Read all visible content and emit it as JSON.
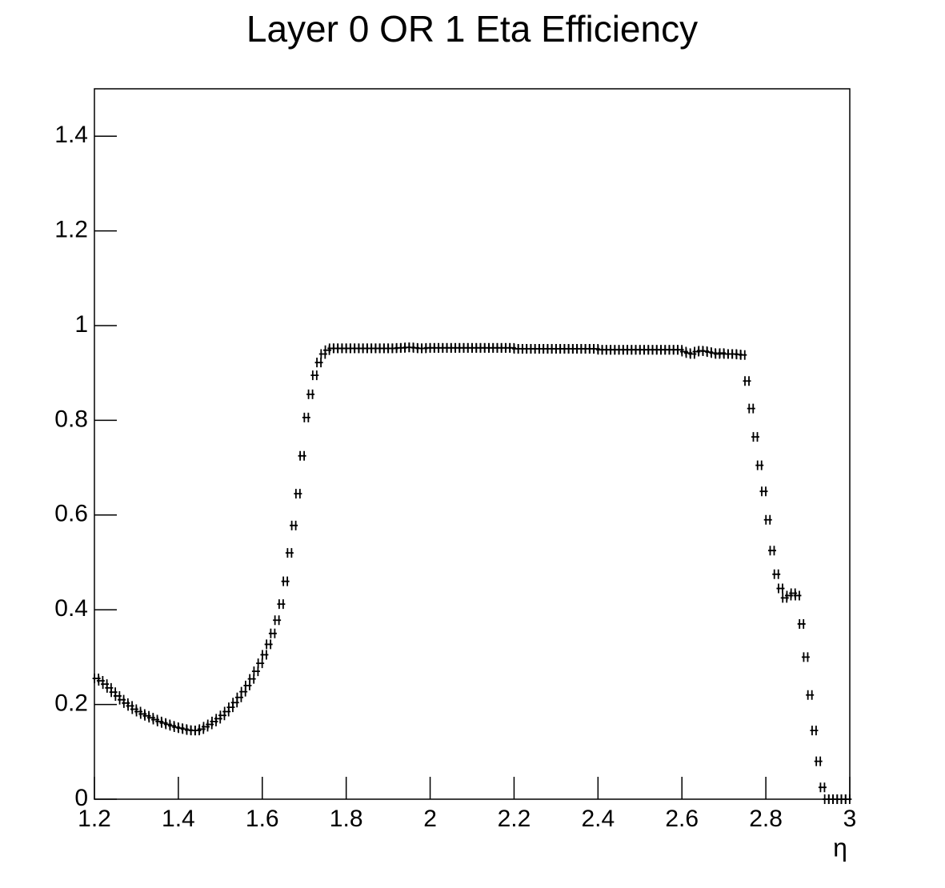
{
  "chart_data": {
    "type": "scatter",
    "title": "Layer 0 OR 1 Eta Efficiency",
    "x_label": "η",
    "xlim": [
      1.2,
      3.0
    ],
    "ylim": [
      0,
      1.5
    ],
    "xticks": [
      1.2,
      1.4,
      1.6,
      1.8,
      2,
      2.2,
      2.4,
      2.6,
      2.8,
      3
    ],
    "yticks": [
      0,
      0.2,
      0.4,
      0.6,
      0.8,
      1,
      1.2,
      1.4
    ],
    "color": "#000000",
    "x": [
      1.205,
      1.215,
      1.225,
      1.235,
      1.245,
      1.255,
      1.265,
      1.275,
      1.285,
      1.295,
      1.305,
      1.315,
      1.325,
      1.335,
      1.345,
      1.355,
      1.365,
      1.375,
      1.385,
      1.395,
      1.405,
      1.415,
      1.425,
      1.435,
      1.445,
      1.455,
      1.465,
      1.475,
      1.485,
      1.495,
      1.505,
      1.515,
      1.525,
      1.535,
      1.545,
      1.555,
      1.565,
      1.575,
      1.585,
      1.595,
      1.605,
      1.615,
      1.625,
      1.635,
      1.645,
      1.655,
      1.665,
      1.675,
      1.685,
      1.695,
      1.705,
      1.715,
      1.725,
      1.735,
      1.745,
      1.755,
      1.765,
      1.775,
      1.785,
      1.795,
      1.805,
      1.815,
      1.825,
      1.835,
      1.845,
      1.855,
      1.865,
      1.875,
      1.885,
      1.895,
      1.905,
      1.915,
      1.925,
      1.935,
      1.945,
      1.955,
      1.965,
      1.975,
      1.985,
      1.995,
      2.005,
      2.015,
      2.025,
      2.035,
      2.045,
      2.055,
      2.065,
      2.075,
      2.085,
      2.095,
      2.105,
      2.115,
      2.125,
      2.135,
      2.145,
      2.155,
      2.165,
      2.175,
      2.185,
      2.195,
      2.205,
      2.215,
      2.225,
      2.235,
      2.245,
      2.255,
      2.265,
      2.275,
      2.285,
      2.295,
      2.305,
      2.315,
      2.325,
      2.335,
      2.345,
      2.355,
      2.365,
      2.375,
      2.385,
      2.395,
      2.405,
      2.415,
      2.425,
      2.435,
      2.445,
      2.455,
      2.465,
      2.475,
      2.485,
      2.495,
      2.505,
      2.515,
      2.525,
      2.535,
      2.545,
      2.555,
      2.565,
      2.575,
      2.585,
      2.595,
      2.605,
      2.615,
      2.625,
      2.635,
      2.645,
      2.655,
      2.665,
      2.675,
      2.685,
      2.695,
      2.705,
      2.715,
      2.725,
      2.735,
      2.745,
      2.755,
      2.765,
      2.775,
      2.785,
      2.795,
      2.805,
      2.815,
      2.825,
      2.835,
      2.845,
      2.855,
      2.865,
      2.875,
      2.885,
      2.895,
      2.905,
      2.915,
      2.925,
      2.935,
      2.945,
      2.955,
      2.965,
      2.975,
      2.985,
      2.995
    ],
    "values": [
      0.255,
      0.25,
      0.243,
      0.235,
      0.226,
      0.218,
      0.21,
      0.203,
      0.197,
      0.19,
      0.185,
      0.18,
      0.176,
      0.172,
      0.168,
      0.164,
      0.161,
      0.158,
      0.155,
      0.152,
      0.15,
      0.148,
      0.146,
      0.145,
      0.145,
      0.148,
      0.153,
      0.158,
      0.164,
      0.17,
      0.177,
      0.185,
      0.194,
      0.204,
      0.215,
      0.227,
      0.24,
      0.254,
      0.27,
      0.287,
      0.305,
      0.327,
      0.35,
      0.378,
      0.412,
      0.46,
      0.52,
      0.578,
      0.645,
      0.725,
      0.806,
      0.855,
      0.895,
      0.922,
      0.94,
      0.948,
      0.952,
      0.952,
      0.952,
      0.952,
      0.952,
      0.952,
      0.952,
      0.952,
      0.952,
      0.952,
      0.952,
      0.952,
      0.952,
      0.952,
      0.952,
      0.952,
      0.953,
      0.953,
      0.954,
      0.954,
      0.953,
      0.952,
      0.952,
      0.953,
      0.953,
      0.953,
      0.953,
      0.953,
      0.953,
      0.953,
      0.953,
      0.953,
      0.953,
      0.953,
      0.953,
      0.953,
      0.953,
      0.953,
      0.953,
      0.953,
      0.953,
      0.953,
      0.953,
      0.953,
      0.951,
      0.951,
      0.951,
      0.951,
      0.951,
      0.951,
      0.951,
      0.951,
      0.951,
      0.951,
      0.951,
      0.951,
      0.951,
      0.951,
      0.951,
      0.951,
      0.951,
      0.951,
      0.951,
      0.951,
      0.949,
      0.949,
      0.949,
      0.949,
      0.949,
      0.949,
      0.949,
      0.949,
      0.949,
      0.949,
      0.949,
      0.949,
      0.949,
      0.949,
      0.949,
      0.949,
      0.949,
      0.949,
      0.949,
      0.949,
      0.945,
      0.942,
      0.94,
      0.945,
      0.947,
      0.946,
      0.944,
      0.942,
      0.94,
      0.942,
      0.94,
      0.94,
      0.94,
      0.939,
      0.938,
      0.883,
      0.825,
      0.765,
      0.705,
      0.65,
      0.59,
      0.525,
      0.475,
      0.445,
      0.425,
      0.43,
      0.435,
      0.43,
      0.37,
      0.3,
      0.22,
      0.145,
      0.08,
      0.025,
      0,
      0,
      0,
      0,
      0,
      0
    ]
  }
}
